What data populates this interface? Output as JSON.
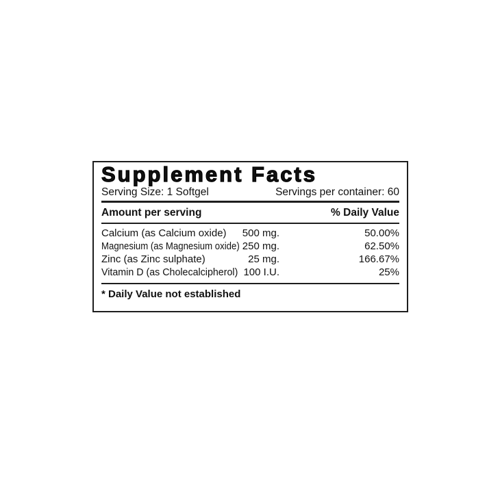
{
  "label": {
    "title": "Supplement Facts",
    "serving_size": "Serving Size: 1 Softgel",
    "servings_per_container": "Servings per container: 60",
    "header": {
      "amount_per_serving": "Amount per serving",
      "daily_value": "% Daily Value"
    },
    "rows": [
      {
        "name": "Calcium (as Calcium oxide)",
        "amount": "500 mg.",
        "daily_value": "50.00%"
      },
      {
        "name": "Magnesium (as Magnesium oxide)",
        "amount": "250 mg.",
        "daily_value": "62.50%"
      },
      {
        "name": "Zinc (as Zinc sulphate)",
        "amount": "25 mg.",
        "daily_value": "166.67%"
      },
      {
        "name": "Vitamin D (as Cholecalcipherol)",
        "amount": "100 I.U.",
        "daily_value": "25%"
      }
    ],
    "footnote": "* Daily Value not established",
    "colors": {
      "text": "#111111",
      "border": "#1e1e1e",
      "background": "#ffffff"
    }
  }
}
